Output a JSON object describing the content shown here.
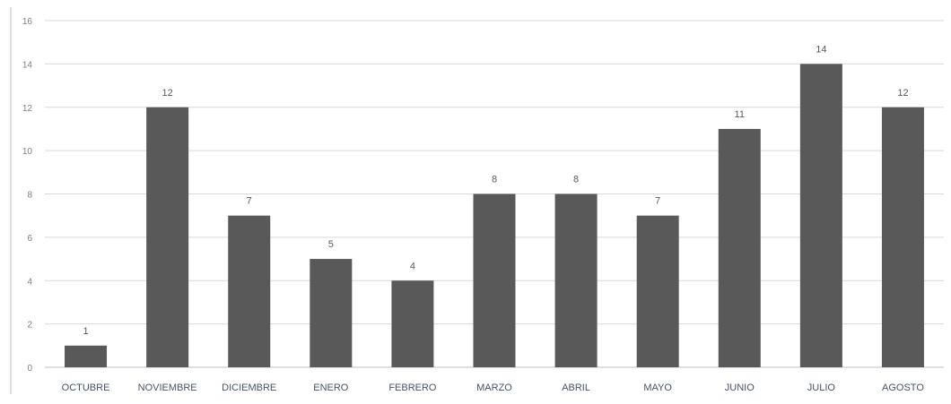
{
  "chart_data": {
    "type": "bar",
    "categories": [
      "OCTUBRE",
      "NOVIEMBRE",
      "DICIEMBRE",
      "ENERO",
      "FEBRERO",
      "MARZO",
      "ABRIL",
      "MAYO",
      "JUNIO",
      "JULIO",
      "AGOSTO"
    ],
    "values": [
      1,
      12,
      7,
      5,
      4,
      8,
      8,
      7,
      11,
      14,
      12
    ],
    "ylim": [
      0,
      16
    ],
    "yticks": [
      0,
      2,
      4,
      6,
      8,
      10,
      12,
      14,
      16
    ],
    "data_labels": true,
    "grid": true,
    "legend": "none",
    "bar_color": "#595959"
  }
}
